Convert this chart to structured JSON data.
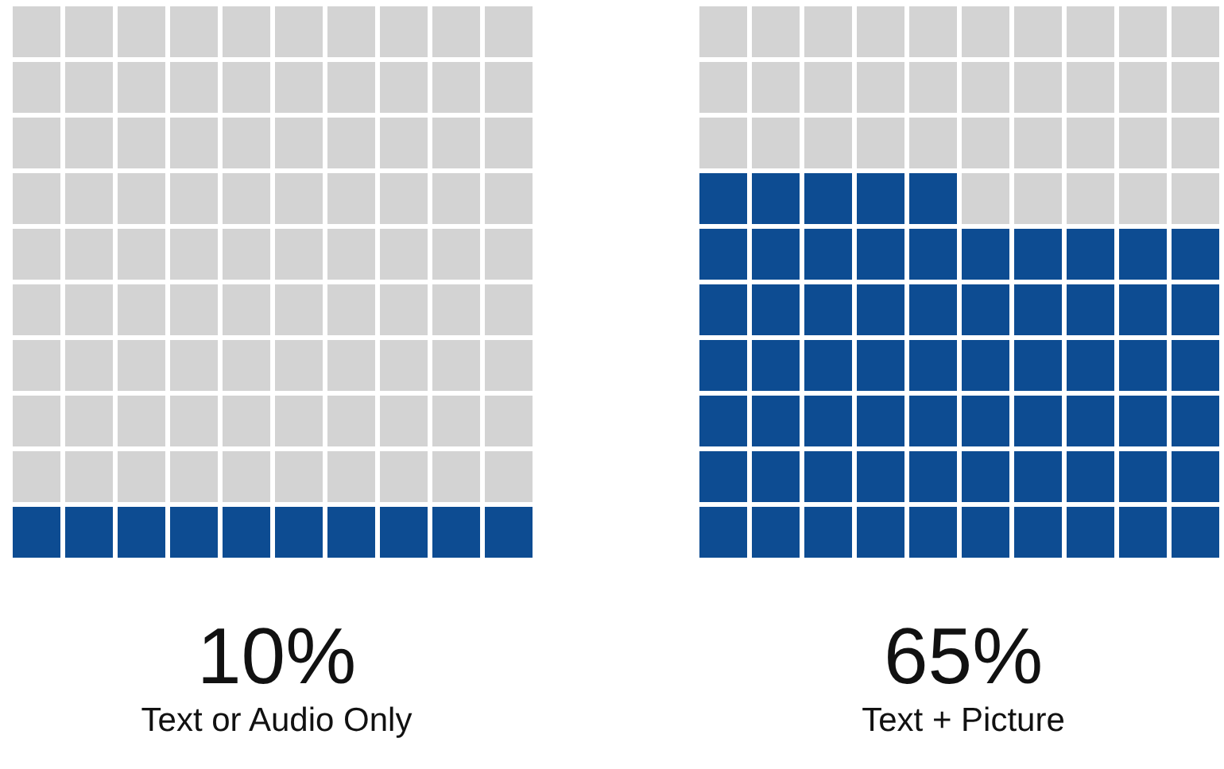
{
  "chart_data": [
    {
      "type": "other",
      "categories": [
        "Text or Audio Only"
      ],
      "values": [
        10
      ],
      "value_labels": [
        "10%"
      ],
      "color": "#0d4c92"
    },
    {
      "type": "other",
      "categories": [
        "Text + Picture"
      ],
      "values": [
        65
      ],
      "value_labels": [
        "65%"
      ],
      "color": "#0d4c92"
    }
  ]
}
